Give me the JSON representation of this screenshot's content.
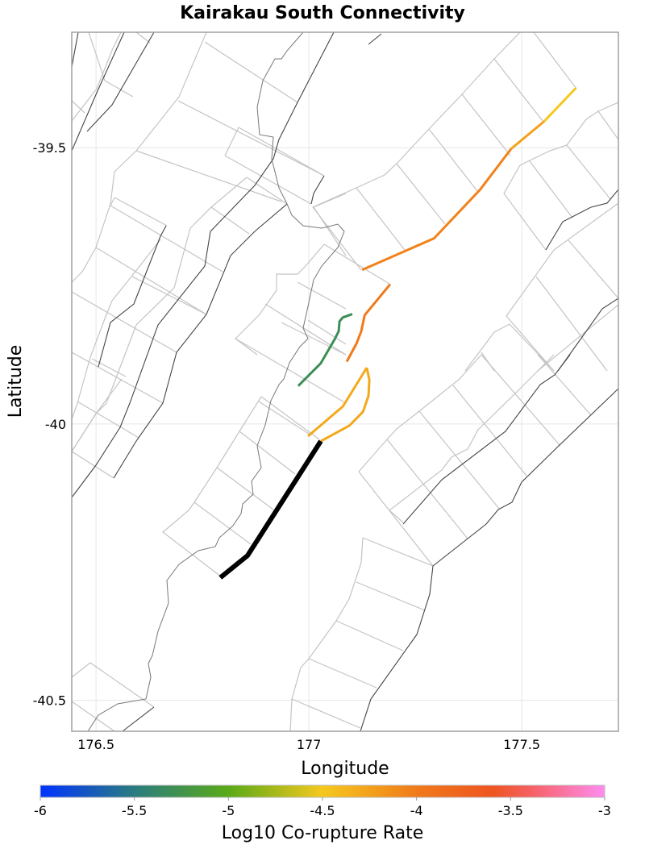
{
  "chart_data": {
    "type": "map",
    "title": "Kairakau South Connectivity",
    "xlabel": "Longitude",
    "ylabel": "Latitude",
    "xlim": [
      176.443,
      177.727
    ],
    "ylim": [
      -40.556,
      -39.291
    ],
    "x_ticks": [
      {
        "value": 176.5,
        "label": "176.5"
      },
      {
        "value": 177,
        "label": "177"
      },
      {
        "value": 177.5,
        "label": "177.5"
      }
    ],
    "y_ticks": [
      {
        "value": -39.5,
        "label": "-39.5"
      },
      {
        "value": -40,
        "label": "-40"
      },
      {
        "value": -40.5,
        "label": "-40.5"
      }
    ],
    "grid": true,
    "target_color": "#000000",
    "target_section": [
      [
        176.792,
        -40.278
      ],
      [
        176.856,
        -40.238
      ],
      [
        177.028,
        -40.031
      ]
    ],
    "connected_sections": [
      {
        "log10_rate": -4.3,
        "coords": [
          [
            176.998,
            -40.022
          ],
          [
            177.08,
            -39.968
          ],
          [
            177.136,
            -39.898
          ]
        ]
      },
      {
        "log10_rate": -4.3,
        "coords": [
          [
            177.136,
            -39.898
          ],
          [
            177.142,
            -39.92
          ],
          [
            177.14,
            -39.949
          ],
          [
            177.127,
            -39.978
          ],
          [
            177.095,
            -40.003
          ],
          [
            177.028,
            -40.031
          ]
        ]
      },
      {
        "log10_rate": -5.3,
        "coords": [
          [
            176.975,
            -39.931
          ],
          [
            177.028,
            -39.89
          ],
          [
            177.061,
            -39.846
          ],
          [
            177.07,
            -39.832
          ],
          [
            177.072,
            -39.814
          ],
          [
            177.08,
            -39.807
          ],
          [
            177.102,
            -39.801
          ]
        ]
      },
      {
        "log10_rate": -4.0,
        "coords": [
          [
            177.089,
            -39.887
          ],
          [
            177.112,
            -39.854
          ],
          [
            177.123,
            -39.832
          ],
          [
            177.131,
            -39.803
          ],
          [
            177.191,
            -39.747
          ]
        ]
      },
      {
        "log10_rate": -4.05,
        "coords": [
          [
            177.125,
            -39.721
          ],
          [
            177.294,
            -39.664
          ],
          [
            177.402,
            -39.576
          ],
          [
            177.475,
            -39.502
          ]
        ]
      },
      {
        "log10_rate": -4.25,
        "coords": [
          [
            177.475,
            -39.502
          ],
          [
            177.553,
            -39.452
          ]
        ]
      },
      {
        "log10_rate": -4.5,
        "coords": [
          [
            177.553,
            -39.452
          ],
          [
            177.627,
            -39.392
          ]
        ]
      }
    ],
    "colorbar": {
      "label": "Log10 Co-rupture Rate",
      "range": [
        -6,
        -3
      ],
      "ticks": [
        {
          "value": -6,
          "label": "-6"
        },
        {
          "value": -5.5,
          "label": "-5.5"
        },
        {
          "value": -5,
          "label": "-5"
        },
        {
          "value": -4.5,
          "label": "-4.5"
        },
        {
          "value": -4,
          "label": "-4"
        },
        {
          "value": -3.5,
          "label": "-3.5"
        },
        {
          "value": -3,
          "label": "-3"
        }
      ],
      "stops": [
        {
          "value": -6,
          "color": "#0033ff"
        },
        {
          "value": -5.5,
          "color": "#2a7c80"
        },
        {
          "value": -5,
          "color": "#5aaa18"
        },
        {
          "value": -4.5,
          "color": "#f5c81e"
        },
        {
          "value": -4,
          "color": "#f07a1a"
        },
        {
          "value": -3.6,
          "color": "#ee5520"
        },
        {
          "value": -3.4,
          "color": "#f66060"
        },
        {
          "value": -3,
          "color": "#ff8cf0"
        }
      ]
    }
  }
}
